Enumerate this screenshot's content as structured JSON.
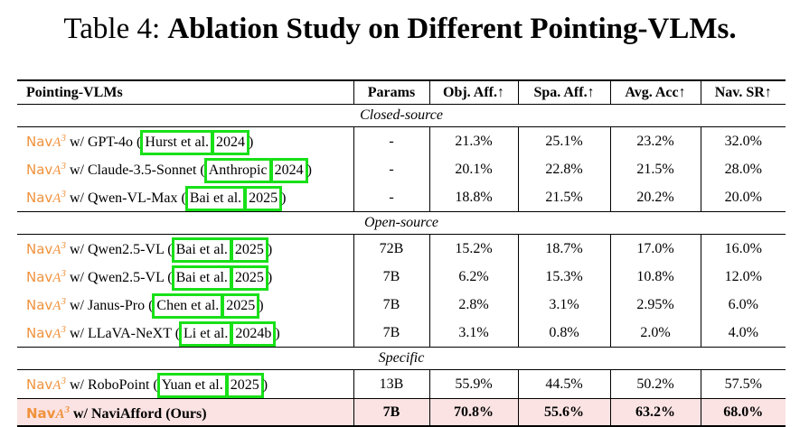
{
  "caption": {
    "prefix": "Table 4: ",
    "title": "Ablation Study on Different Pointing-VLMs."
  },
  "headers": [
    "Pointing-VLMs",
    "Params",
    "Obj. Aff.↑",
    "Spa. Aff.↑",
    "Avg. Acc↑",
    "Nav. SR↑"
  ],
  "nav_text": "Nav",
  "nav_sup": "A",
  "nav_exp": "3",
  "sections": [
    {
      "name": "Closed-source",
      "rows": [
        {
          "model": " w/ GPT-4o (",
          "author": "Hurst et al.",
          "year": "2024",
          "close": ")",
          "params": "-",
          "obj": "21.3%",
          "spa": "25.1%",
          "avg": "23.2%",
          "sr": "32.0%"
        },
        {
          "model": " w/ Claude-3.5-Sonnet (",
          "author": "Anthropic",
          "year": "2024",
          "close": ")",
          "params": "-",
          "obj": "20.1%",
          "spa": "22.8%",
          "avg": "21.5%",
          "sr": "28.0%"
        },
        {
          "model": " w/ Qwen-VL-Max (",
          "author": "Bai et al.",
          "year": "2025",
          "close": ")",
          "params": "-",
          "obj": "18.8%",
          "spa": "21.5%",
          "avg": "20.2%",
          "sr": "20.0%"
        }
      ]
    },
    {
      "name": "Open-source",
      "rows": [
        {
          "model": " w/ Qwen2.5-VL (",
          "author": "Bai et al.",
          "year": "2025",
          "close": ")",
          "params": "72B",
          "obj": "15.2%",
          "spa": "18.7%",
          "avg": "17.0%",
          "sr": "16.0%"
        },
        {
          "model": " w/ Qwen2.5-VL (",
          "author": "Bai et al.",
          "year": "2025",
          "close": ")",
          "params": "7B",
          "obj": "6.2%",
          "spa": "15.3%",
          "avg": "10.8%",
          "sr": "12.0%"
        },
        {
          "model": " w/ Janus-Pro (",
          "author": "Chen et al.",
          "year": "2025",
          "close": ")",
          "params": "7B",
          "obj": "2.8%",
          "spa": "3.1%",
          "avg": "2.95%",
          "sr": "6.0%"
        },
        {
          "model": " w/ LLaVA-NeXT (",
          "author": "Li et al.",
          "year": "2024b",
          "close": ")",
          "params": "7B",
          "obj": "3.1%",
          "spa": "0.8%",
          "avg": "2.0%",
          "sr": "4.0%"
        }
      ]
    },
    {
      "name": "Specific",
      "rows": [
        {
          "model": " w/ RoboPoint (",
          "author": "Yuan et al.",
          "year": "2025",
          "close": ")",
          "params": "13B",
          "obj": "55.9%",
          "spa": "44.5%",
          "avg": "50.2%",
          "sr": "57.5%"
        }
      ]
    }
  ],
  "ours": {
    "model": " w/ NaviAfford (Ours)",
    "params": "7B",
    "obj": "70.8%",
    "spa": "55.6%",
    "avg": "63.2%",
    "sr": "68.0%"
  },
  "colors": {
    "nav_orange": "#f0923c",
    "highlight_green": "#18e018",
    "ours_bg": "#fbe3e3"
  }
}
